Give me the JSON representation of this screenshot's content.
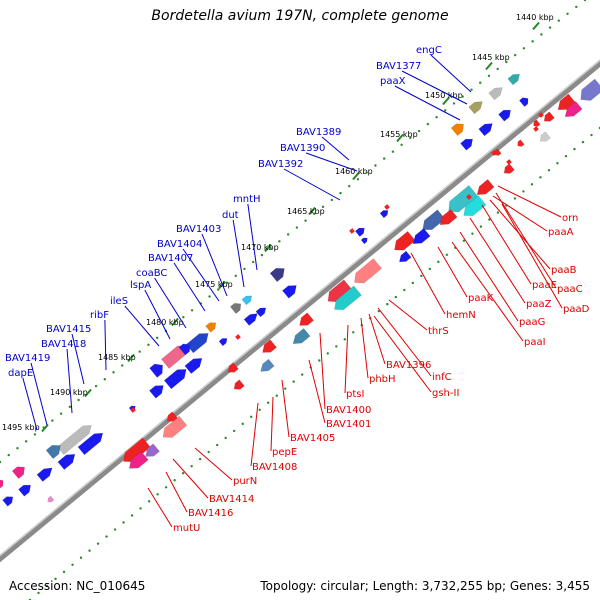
{
  "title": "Bordetella avium 197N, complete genome",
  "accession": "Accession: NC_010645",
  "summary": "Topology: circular; Length: 3,732,255 bp; Genes: 3,455",
  "colors": {
    "forward_label": "#0000cc",
    "reverse_label": "#dd0000",
    "backbone": "#888888",
    "tick": "#228822"
  },
  "ticks": [
    "1440 kbp",
    "1445 kbp",
    "1450 kbp",
    "1455 kbp",
    "1460 kbp",
    "1465 kbp",
    "1470 kbp",
    "1475 kbp",
    "1480 kbp",
    "1485 kbp",
    "1490 kbp",
    "1495 kbp"
  ],
  "forward_genes": [
    "engC",
    "BAV1377",
    "paaX",
    "BAV1389",
    "BAV1390",
    "BAV1392",
    "mntH",
    "dut",
    "BAV1403",
    "BAV1404",
    "BAV1407",
    "coaBC",
    "lspA",
    "ileS",
    "ribF",
    "BAV1415",
    "BAV1418",
    "BAV1419",
    "dapE"
  ],
  "reverse_genes": [
    "orn",
    "paaA",
    "paaB",
    "paaC",
    "paaE",
    "paaD",
    "paaZ",
    "paaK",
    "paaG",
    "paaI",
    "hemN",
    "thrS",
    "infC",
    "BAV1396",
    "gsh-II",
    "phbH",
    "ptsI",
    "BAV1400",
    "BAV1401",
    "BAV1405",
    "pepE",
    "BAV1408",
    "purN",
    "BAV1414",
    "BAV1416",
    "mutU"
  ]
}
